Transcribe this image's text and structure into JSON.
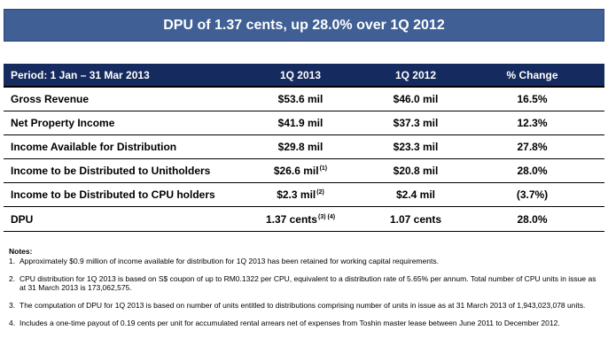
{
  "banner": {
    "title": "DPU of 1.37 cents, up 28.0% over 1Q 2012"
  },
  "table": {
    "headers": [
      "Period: 1 Jan – 31 Mar 2013",
      "1Q 2013",
      "1Q 2012",
      "% Change"
    ],
    "rows": [
      {
        "label": "Gross Revenue",
        "q1_2013": "$53.6 mil",
        "q1_2013_note": "",
        "q1_2012": "$46.0 mil",
        "change": "16.5%"
      },
      {
        "label": "Net Property Income",
        "q1_2013": "$41.9 mil",
        "q1_2013_note": "",
        "q1_2012": "$37.3 mil",
        "change": "12.3%"
      },
      {
        "label": "Income Available for Distribution",
        "q1_2013": "$29.8 mil",
        "q1_2013_note": "",
        "q1_2012": "$23.3 mil",
        "change": "27.8%"
      },
      {
        "label": "Income to be Distributed to Unitholders",
        "q1_2013": "$26.6 mil",
        "q1_2013_note": "(1)",
        "q1_2012": "$20.8 mil",
        "change": "28.0%"
      },
      {
        "label": "Income to be Distributed to CPU holders",
        "q1_2013": "$2.3 mil",
        "q1_2013_note": "(2)",
        "q1_2012": "$2.4 mil",
        "change": "(3.7%)"
      },
      {
        "label": "DPU",
        "q1_2013": "1.37 cents",
        "q1_2013_note": "(3) (4)",
        "q1_2012": "1.07 cents",
        "change": "28.0%"
      }
    ]
  },
  "notes": {
    "title": "Notes:",
    "items": [
      {
        "num": "1.",
        "text": "Approximately $0.9 million of income available for distribution for 1Q 2013 has been retained for working capital requirements."
      },
      {
        "num": "2.",
        "text": "CPU distribution for 1Q 2013 is based on S$ coupon of up to RM0.1322 per CPU, equivalent to a distribution rate of 5.65% per annum. Total number of CPU units in issue as at 31 March 2013 is 173,062,575."
      },
      {
        "num": "3.",
        "text": "The computation of DPU for 1Q 2013 is based on number of units entitled to distributions comprising number of units in issue as at 31 March 2013 of 1,943,023,078 units."
      },
      {
        "num": "4.",
        "text": "Includes a one-time payout of 0.19 cents per unit for accumulated rental arrears net of expenses from Toshin master lease between June 2011 to December 2012."
      }
    ]
  }
}
